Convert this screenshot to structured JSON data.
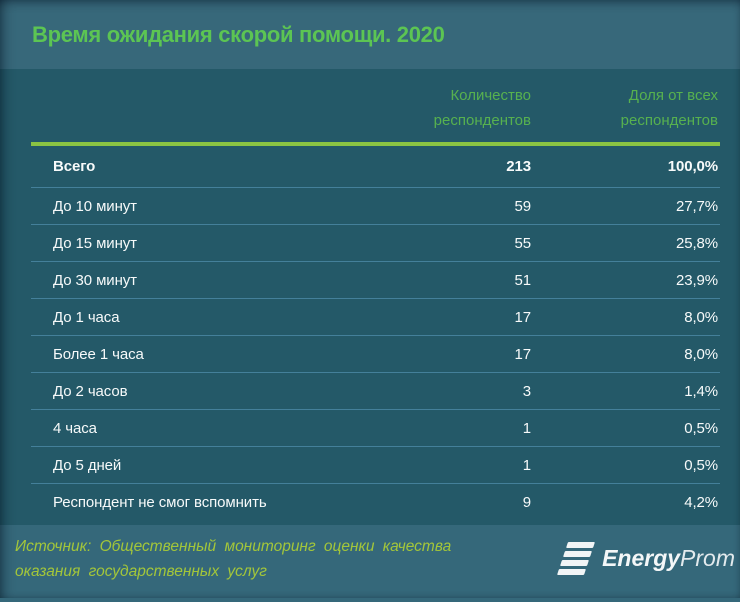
{
  "chart_data": {
    "type": "table",
    "title": "Время ожидания скорой помощи. 2020",
    "columns": [
      {
        "label": "Количество респондентов",
        "lines": [
          "Количество",
          "респондентов"
        ]
      },
      {
        "label": "Доля от всех респондентов",
        "lines": [
          "Доля от всех",
          "респондентов"
        ]
      }
    ],
    "rows": [
      {
        "label": "Всего",
        "count": "213",
        "share": "100,0%"
      },
      {
        "label": "До 10 минут",
        "count": "59",
        "share": "27,7%"
      },
      {
        "label": "До 15 минут",
        "count": "55",
        "share": "25,8%"
      },
      {
        "label": "До 30 минут",
        "count": "51",
        "share": "23,9%"
      },
      {
        "label": "До 1 часа",
        "count": "17",
        "share": "8,0%"
      },
      {
        "label": "Более 1 часа",
        "count": "17",
        "share": "8,0%"
      },
      {
        "label": "До 2 часов",
        "count": "3",
        "share": "1,4%"
      },
      {
        "label": "4 часа",
        "count": "1",
        "share": "0,5%"
      },
      {
        "label": "До 5 дней",
        "count": "1",
        "share": "0,5%"
      },
      {
        "label": "Респондент не смог вспомнить",
        "count": "9",
        "share": "4,2%"
      }
    ],
    "source_lines": [
      "Источник: Общественный мониторинг оценки качества",
      "оказания государственных услуг"
    ],
    "logo": {
      "name": "EnergyProm",
      "part_bold": "Energy",
      "part_regular": "Prom"
    },
    "layout_hints": {
      "grid": "row separators only",
      "legend_position": "none"
    }
  },
  "colors": {
    "title_green": "#5CC553",
    "header_green": "#57B14F",
    "rule_green": "#8BC443",
    "source_green": "#A3C63A",
    "bg_title": "#37687A",
    "bg_table": "#245968",
    "bg_footer": "#35687A",
    "row_separator": "#44809A",
    "text_white": "#F7FAFA"
  }
}
